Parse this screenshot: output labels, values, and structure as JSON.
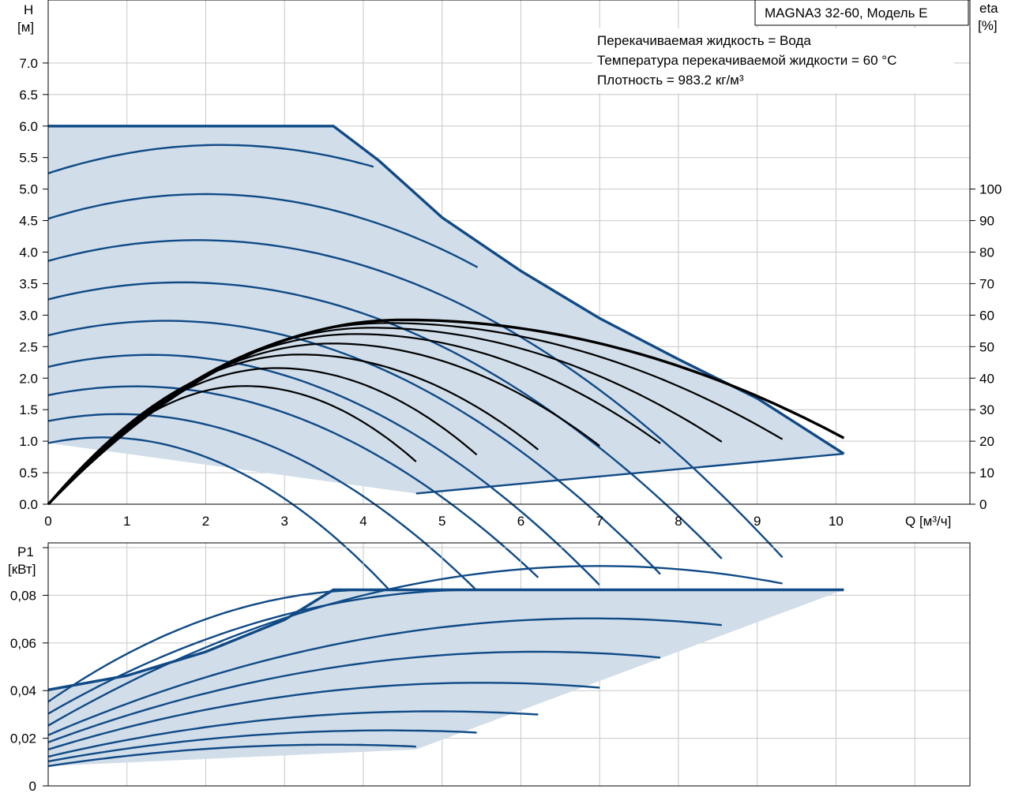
{
  "model_label": "MAGNA3 32-60, Модель E",
  "conditions": [
    "Перекачиваемая жидкость = Вода",
    "Температура перекачиваемой жидкости = 60 °C",
    "Плотность = 983.2 кг/м³"
  ],
  "axes": {
    "h_label_1": "H",
    "h_label_2": "[м]",
    "eta_label_1": "eta",
    "eta_label_2": "[%]",
    "q_label": "Q [м³/ч]",
    "p1_label_1": "P1",
    "p1_label_2": "[кВт]"
  },
  "chart_data": [
    {
      "type": "line",
      "name": "QH",
      "xlabel": "Q [м³/ч]",
      "ylabel": "H [м]",
      "xlim": [
        0,
        11.7
      ],
      "ylim": [
        0,
        8
      ],
      "y2label": "eta [%]",
      "y2lim": [
        0,
        160
      ],
      "x_ticks": [
        0,
        1,
        2,
        3,
        4,
        5,
        6,
        7,
        8,
        9,
        10
      ],
      "y_ticks": [
        0.0,
        0.5,
        1.0,
        1.5,
        2.0,
        2.5,
        3.0,
        3.5,
        4.0,
        4.5,
        5.0,
        5.5,
        6.0,
        6.5,
        7.0
      ],
      "y_tick_labels": [
        "0.0",
        "0.5",
        "1.0",
        "1.5",
        "2.0",
        "2.5",
        "3.0",
        "3.5",
        "4.0",
        "4.5",
        "5.0",
        "5.5",
        "6.0",
        "6.5",
        "7.0"
      ],
      "y2_ticks": [
        0,
        10,
        20,
        30,
        40,
        50,
        60,
        70,
        80,
        90,
        100
      ],
      "grid": true,
      "max_curve": [
        [
          0,
          6.0
        ],
        [
          3.62,
          6.0
        ],
        [
          4.2,
          5.45
        ],
        [
          5.0,
          4.55
        ],
        [
          6.0,
          3.7
        ],
        [
          7.0,
          2.95
        ],
        [
          8.0,
          2.3
        ],
        [
          9.0,
          1.68
        ],
        [
          10.1,
          0.8
        ]
      ],
      "area_bottom": [
        [
          4.67,
          0.17
        ],
        [
          10.1,
          0.8
        ]
      ],
      "series": [
        {
          "q0": 0,
          "h0": 0.97,
          "qpeak": 0.7,
          "hpeak": 1.06,
          "qend": 4.67,
          "hend": 0.17
        },
        {
          "q0": 0,
          "h0": 1.32,
          "qpeak": 0.9,
          "hpeak": 1.43,
          "qend": 5.44,
          "hend": 0.23
        },
        {
          "q0": 0,
          "h0": 1.73,
          "qpeak": 1.1,
          "hpeak": 1.87,
          "qend": 6.22,
          "hend": 0.29
        },
        {
          "q0": 0,
          "h0": 2.18,
          "qpeak": 1.3,
          "hpeak": 2.37,
          "qend": 7.0,
          "hend": 0.37
        },
        {
          "q0": 0,
          "h0": 2.68,
          "qpeak": 1.5,
          "hpeak": 2.91,
          "qend": 7.77,
          "hend": 0.46
        },
        {
          "q0": 0,
          "h0": 3.25,
          "qpeak": 1.7,
          "hpeak": 3.52,
          "qend": 8.55,
          "hend": 0.56
        },
        {
          "q0": 0,
          "h0": 3.86,
          "qpeak": 1.9,
          "hpeak": 4.19,
          "qend": 9.32,
          "hend": 0.67
        },
        {
          "q0": 0,
          "h0": 4.53,
          "qpeak": 2.0,
          "hpeak": 4.92,
          "qend": 5.45,
          "hend": 4.0
        },
        {
          "q0": 0,
          "h0": 5.25,
          "qpeak": 2.2,
          "hpeak": 5.7,
          "qend": 4.13,
          "hend": 5.4
        }
      ],
      "eta_curves": [
        {
          "qpeak": 2.5,
          "etapeak": 37.5,
          "qend": 4.67,
          "etaend": 13.5
        },
        {
          "qpeak": 2.9,
          "etapeak": 43.2,
          "qend": 5.44,
          "etaend": 15.7
        },
        {
          "qpeak": 3.2,
          "etapeak": 47.5,
          "qend": 6.22,
          "etaend": 17.3
        },
        {
          "qpeak": 3.6,
          "etapeak": 51.0,
          "qend": 7.0,
          "etaend": 18.5
        },
        {
          "qpeak": 3.9,
          "etapeak": 54.0,
          "qend": 7.77,
          "etaend": 19.3
        },
        {
          "qpeak": 4.1,
          "etapeak": 56.0,
          "qend": 8.55,
          "etaend": 19.8
        },
        {
          "qpeak": 4.3,
          "etapeak": 57.5,
          "qend": 9.32,
          "etaend": 20.6
        },
        {
          "qpeak": 4.5,
          "etapeak": 58.5,
          "qend": 10.1,
          "etaend": 21.0
        }
      ]
    },
    {
      "type": "line",
      "name": "P1",
      "xlabel": "Q [м³/ч]",
      "ylabel": "P1 [кВт]",
      "xlim": [
        0,
        11.7
      ],
      "ylim": [
        0,
        0.102
      ],
      "y_ticks": [
        0,
        0.02,
        0.04,
        0.06,
        0.08
      ],
      "y_tick_labels": [
        "0",
        "0,02",
        "0,04",
        "0,06",
        "0,08"
      ],
      "grid": true,
      "max_curve": [
        [
          0,
          0.0403
        ],
        [
          1.0,
          0.0463
        ],
        [
          2.0,
          0.0563
        ],
        [
          3.0,
          0.0697
        ],
        [
          3.62,
          0.0823
        ],
        [
          10.1,
          0.0823
        ]
      ],
      "area_bottom": [
        [
          4.67,
          0.0153
        ],
        [
          10.1,
          0.0823
        ]
      ],
      "series": [
        {
          "p0": 0.0083,
          "ppeak": 0.0173,
          "qpeak": 3.6,
          "qend": 4.67,
          "pend": 0.0153
        },
        {
          "p0": 0.0103,
          "ppeak": 0.0233,
          "qpeak": 4.3,
          "qend": 5.44,
          "pend": 0.0213
        },
        {
          "p0": 0.0123,
          "ppeak": 0.0313,
          "qpeak": 4.9,
          "qend": 6.22,
          "pend": 0.0293
        },
        {
          "p0": 0.0153,
          "ppeak": 0.0433,
          "qpeak": 5.5,
          "qend": 7.0,
          "pend": 0.0383
        },
        {
          "p0": 0.0183,
          "ppeak": 0.0563,
          "qpeak": 6.2,
          "qend": 7.77,
          "pend": 0.0503
        },
        {
          "p0": 0.0213,
          "ppeak": 0.0703,
          "qpeak": 6.9,
          "qend": 8.55,
          "pend": 0.0653
        },
        {
          "p0": 0.0253,
          "ppeak": 0.0923,
          "qpeak": 7.0,
          "qend": 9.32,
          "pend": 0.0823
        },
        {
          "p0": 0.0303,
          "ppeak": 0.0823,
          "qpeak": 5.45,
          "qend": 5.45,
          "pend": 0.0823
        },
        {
          "p0": 0.0353,
          "ppeak": 0.0823,
          "qpeak": 4.1,
          "qend": 4.1,
          "pend": 0.0823
        }
      ]
    }
  ]
}
